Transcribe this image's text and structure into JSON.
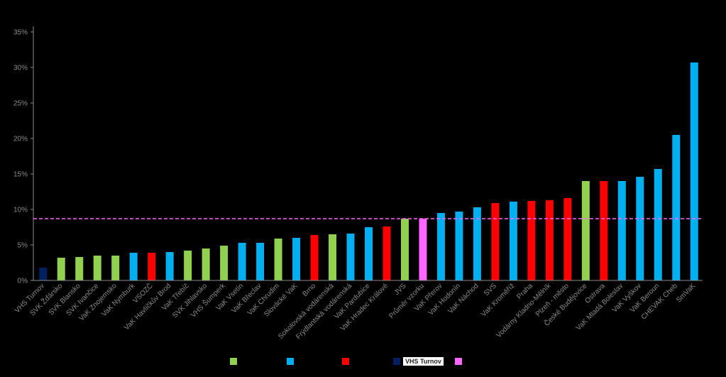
{
  "colors": {
    "green": "#92d050",
    "blue": "#00b0f0",
    "red": "#ff0000",
    "navy": "#002060",
    "pink": "#ff66ff",
    "axis": "#8c8c8c",
    "background": "#000000"
  },
  "chart_data": {
    "type": "bar",
    "ylim": [
      0,
      35
    ],
    "ytick_format": "percent",
    "yticks": [
      "0%",
      "5%",
      "10%",
      "15%",
      "20%",
      "25%",
      "30%",
      "35%"
    ],
    "ytick_values": [
      0,
      5,
      10,
      15,
      20,
      25,
      30,
      35
    ],
    "grid": false,
    "reference_line": {
      "value": 8.7,
      "color": "pink",
      "style": "dashed"
    },
    "categories": [
      "VHS Turnov",
      "SVK Žďársko",
      "SVK Blansko",
      "SVK Ivančice",
      "VaK Znojemsko",
      "VaK Nymburk",
      "VSOZČ",
      "VaK Havlíčkův Brod",
      "VaK Třebíč",
      "SVK Jihlavsko",
      "VHS Šumperk",
      "VaK Vsetín",
      "VaK Břeclav",
      "VaK Chrudim",
      "Slovácké VaK",
      "Brno",
      "Sokolovská vodárenská",
      "Frýdlantská vodárenská",
      "VaK Pardubice",
      "VaK Hradec Králové",
      "JVS",
      "Průměr vzorku",
      "VaK Přerov",
      "VaK Hodonín",
      "VaK Náchod",
      "SVS",
      "VaK Kroměříž",
      "Praha",
      "Vodárny Kladno-Mělník",
      "Plzeň - město",
      "České Budějovice",
      "Ostrava",
      "VaK Mladá Boleslav",
      "VaK Vyškov",
      "VaK Beroun",
      "CHEVAK Cheb",
      "SmVaK"
    ],
    "values": [
      1.8,
      3.2,
      3.3,
      3.5,
      3.5,
      3.9,
      3.9,
      4.0,
      4.2,
      4.5,
      4.9,
      5.3,
      5.3,
      5.9,
      6.0,
      6.4,
      6.5,
      6.6,
      7.5,
      7.6,
      8.7,
      8.7,
      9.5,
      9.7,
      10.3,
      10.9,
      11.1,
      11.2,
      11.3,
      11.6,
      14.0,
      14.0,
      14.0,
      14.6,
      15.7,
      20.5,
      30.7
    ],
    "bar_colors": [
      "navy",
      "green",
      "green",
      "green",
      "green",
      "blue",
      "red",
      "blue",
      "green",
      "green",
      "green",
      "blue",
      "blue",
      "green",
      "blue",
      "red",
      "green",
      "blue",
      "blue",
      "red",
      "green",
      "pink",
      "blue",
      "blue",
      "blue",
      "red",
      "blue",
      "red",
      "red",
      "red",
      "green",
      "red",
      "blue",
      "blue",
      "blue",
      "blue",
      "blue"
    ]
  },
  "legend": [
    {
      "color": "green",
      "label": ""
    },
    {
      "color": "blue",
      "label": ""
    },
    {
      "color": "red",
      "label": ""
    },
    {
      "color": "navy",
      "label": "VHS Turnov"
    },
    {
      "color": "pink",
      "label": ""
    }
  ]
}
